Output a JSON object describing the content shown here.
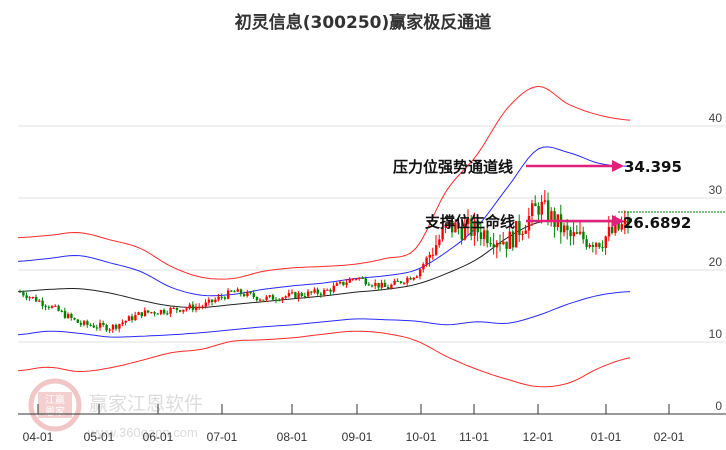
{
  "header": {
    "title": "初灵信息(300250)赢家极反通道"
  },
  "watermark": {
    "brand": "赢家江恩软件",
    "url": "www.360gann.com",
    "seal_top": "江赢",
    "seal_bottom": "恩家"
  },
  "annotations": {
    "resistance_label": "压力位强势通道线",
    "resistance_value": "34.395",
    "support_label": "支撑位生命线",
    "support_value": "26.6892"
  },
  "colors": {
    "outer_band": "#ff2a2a",
    "inner_band": "#2a2aff",
    "mid_line": "#222222",
    "up_candle": "#ff0000",
    "down_candle": "#008000",
    "arrow": "#e0207a",
    "last_price_line": "#008000",
    "grid": "#e0e0e0"
  },
  "chart_data": {
    "type": "line",
    "title": "初灵信息(300250)赢家极反通道",
    "xlabel": "",
    "ylabel": "",
    "ylim": [
      0,
      45
    ],
    "y_ticks": [
      "0",
      "10",
      "20",
      "30",
      "40"
    ],
    "x_ticks": [
      "04-01",
      "05-01",
      "06-01",
      "07-01",
      "08-01",
      "09-01",
      "10-01",
      "11-01",
      "12-01",
      "01-01",
      "02-01"
    ],
    "grid": "horizontal",
    "legend": "none",
    "x": [
      "03-20",
      "04-01",
      "04-15",
      "05-01",
      "05-15",
      "06-01",
      "06-15",
      "07-01",
      "07-15",
      "08-01",
      "08-15",
      "09-01",
      "09-15",
      "10-01",
      "10-15",
      "11-01",
      "11-15",
      "12-01",
      "12-15",
      "01-01",
      "01-10"
    ],
    "series": [
      {
        "name": "outer_upper",
        "values": [
          24.5,
          24.8,
          25.2,
          24.2,
          23.0,
          20.5,
          19.0,
          18.8,
          19.8,
          20.3,
          20.5,
          20.8,
          21.6,
          23.0,
          31.0,
          36.0,
          42.5,
          45.5,
          43.0,
          41.5,
          40.8
        ]
      },
      {
        "name": "inner_upper",
        "values": [
          21.2,
          21.6,
          22.0,
          21.0,
          19.8,
          17.6,
          16.5,
          16.6,
          17.3,
          17.8,
          18.2,
          18.8,
          19.2,
          20.0,
          22.5,
          26.0,
          31.5,
          36.8,
          36.3,
          34.8,
          34.4
        ]
      },
      {
        "name": "middle",
        "values": [
          17.0,
          17.3,
          17.4,
          16.8,
          15.8,
          15.0,
          14.8,
          15.2,
          15.6,
          16.0,
          16.4,
          16.9,
          17.3,
          18.0,
          19.5,
          21.5,
          24.5,
          26.6,
          26.7,
          26.7,
          26.7
        ]
      },
      {
        "name": "inner_lower",
        "values": [
          11.0,
          11.5,
          11.2,
          10.7,
          10.8,
          11.0,
          11.3,
          11.7,
          12.1,
          12.4,
          12.8,
          13.2,
          13.1,
          12.9,
          12.4,
          12.8,
          12.6,
          13.7,
          15.3,
          16.5,
          17.0
        ]
      },
      {
        "name": "outer_lower",
        "values": [
          6.0,
          6.5,
          5.9,
          6.4,
          7.4,
          8.5,
          9.0,
          10.1,
          10.3,
          10.6,
          11.1,
          11.5,
          11.2,
          10.2,
          8.0,
          6.2,
          4.8,
          3.8,
          4.3,
          6.4,
          7.8
        ]
      },
      {
        "name": "close",
        "values": [
          17.0,
          15.0,
          12.5,
          12.0,
          14.0,
          14.5,
          15.0,
          17.0,
          16.0,
          16.5,
          17.0,
          19.0,
          17.5,
          19.5,
          26.0,
          25.5,
          24.0,
          29.0,
          24.5,
          24.2,
          26.7
        ]
      }
    ],
    "reference_lines": [
      {
        "name": "压力位强势通道线",
        "value": 34.395
      },
      {
        "name": "支撑位生命线",
        "value": 26.6892
      },
      {
        "name": "last_price",
        "value": 27.9
      }
    ]
  }
}
